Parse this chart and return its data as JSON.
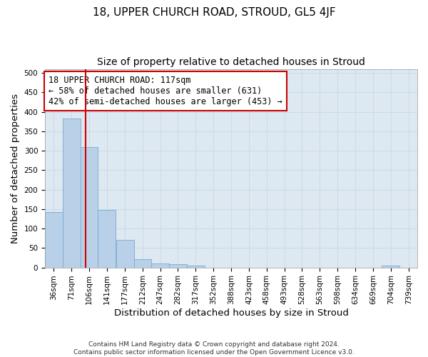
{
  "title": "18, UPPER CHURCH ROAD, STROUD, GL5 4JF",
  "subtitle": "Size of property relative to detached houses in Stroud",
  "xlabel": "Distribution of detached houses by size in Stroud",
  "ylabel": "Number of detached properties",
  "bin_labels": [
    "36sqm",
    "71sqm",
    "106sqm",
    "141sqm",
    "177sqm",
    "212sqm",
    "247sqm",
    "282sqm",
    "317sqm",
    "352sqm",
    "388sqm",
    "423sqm",
    "458sqm",
    "493sqm",
    "528sqm",
    "563sqm",
    "598sqm",
    "634sqm",
    "669sqm",
    "704sqm",
    "739sqm"
  ],
  "bar_heights": [
    143,
    383,
    310,
    147,
    70,
    22,
    10,
    8,
    5,
    0,
    0,
    0,
    0,
    0,
    0,
    0,
    0,
    0,
    0,
    5,
    0
  ],
  "bin_edges": [
    36,
    71,
    106,
    141,
    177,
    212,
    247,
    282,
    317,
    352,
    388,
    423,
    458,
    493,
    528,
    563,
    598,
    634,
    669,
    704,
    739
  ],
  "bar_color": "#b8d0e8",
  "bar_edgecolor": "#7aaad0",
  "property_line_x": 117,
  "annotation_line1": "18 UPPER CHURCH ROAD: 117sqm",
  "annotation_line2": "← 58% of detached houses are smaller (631)",
  "annotation_line3": "42% of semi-detached houses are larger (453) →",
  "annotation_box_color": "#ffffff",
  "annotation_box_edgecolor": "#cc0000",
  "red_line_color": "#cc0000",
  "ylim": [
    0,
    510
  ],
  "yticks": [
    0,
    50,
    100,
    150,
    200,
    250,
    300,
    350,
    400,
    450,
    500
  ],
  "grid_color": "#c8d8ea",
  "background_color": "#dde8f0",
  "footer_line1": "Contains HM Land Registry data © Crown copyright and database right 2024.",
  "footer_line2": "Contains public sector information licensed under the Open Government Licence v3.0.",
  "title_fontsize": 11,
  "subtitle_fontsize": 10,
  "axis_label_fontsize": 9.5,
  "tick_fontsize": 7.5,
  "annotation_fontsize": 8.5,
  "footer_fontsize": 6.5
}
